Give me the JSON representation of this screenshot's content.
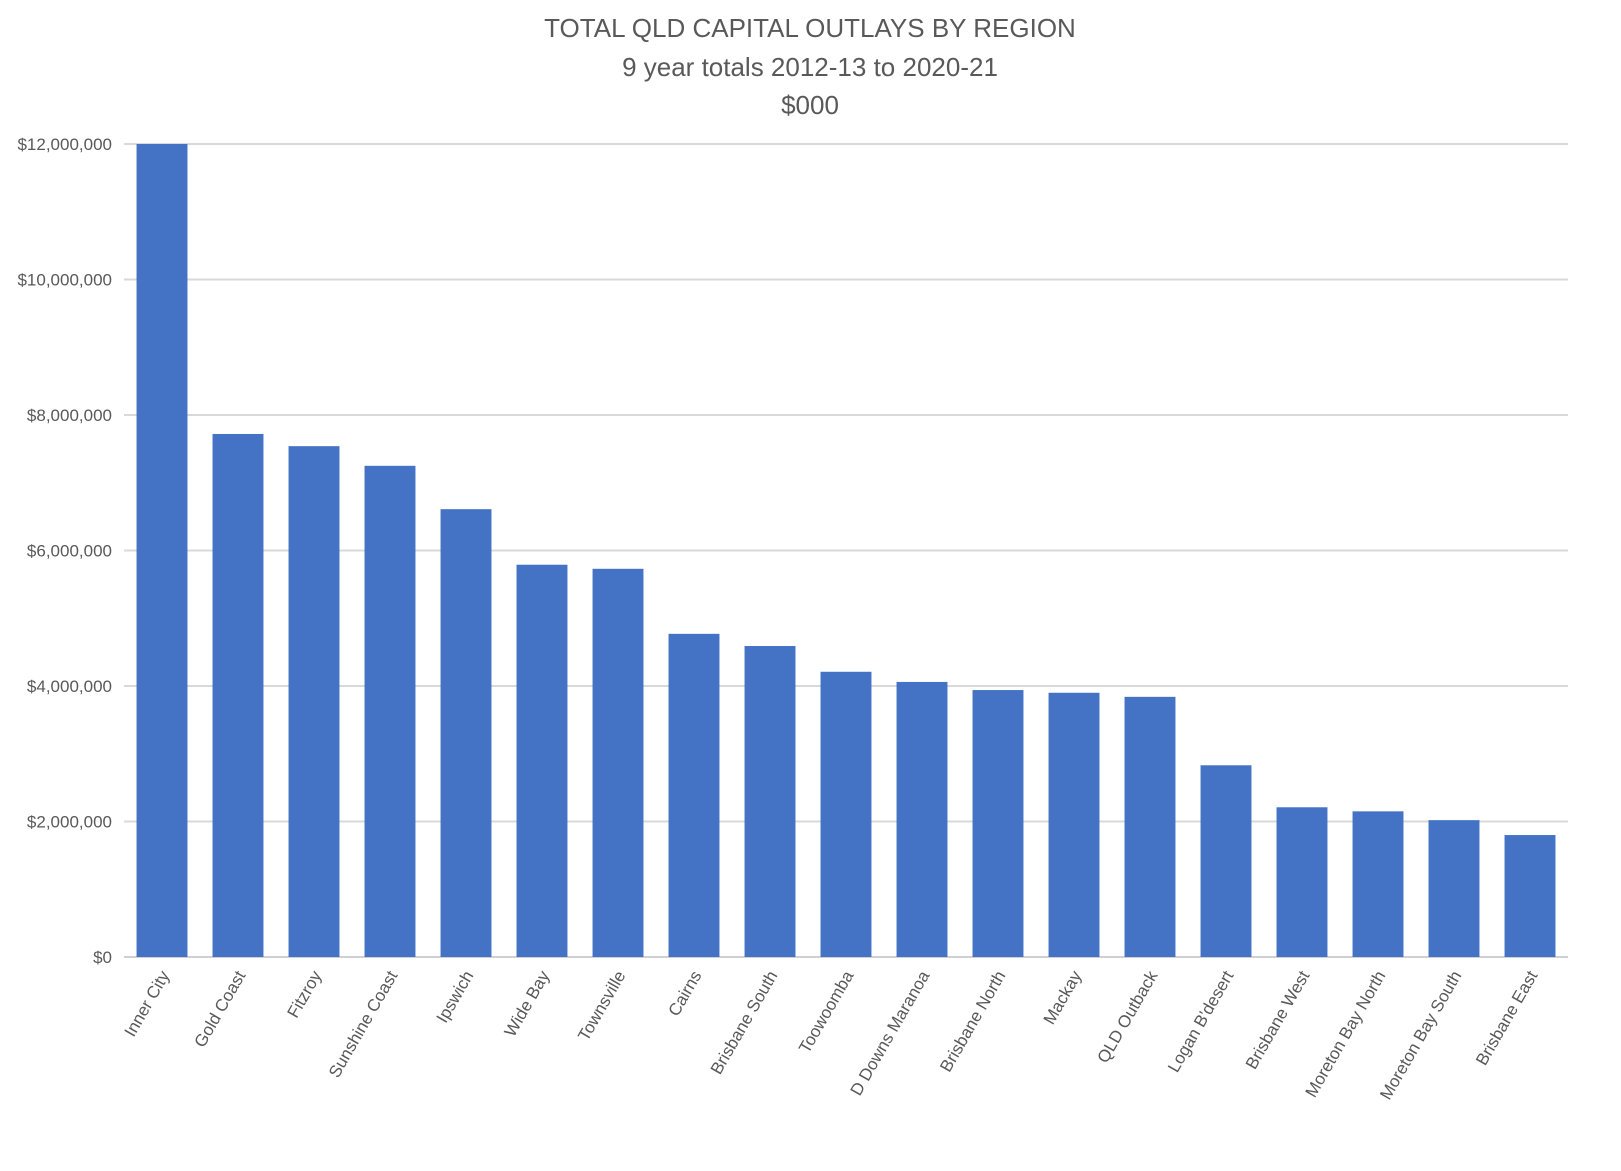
{
  "chart_data": {
    "type": "bar",
    "title": "TOTAL QLD CAPITAL OUTLAYS BY REGION",
    "subtitle": "9 year totals 2012-13 to 2020-21",
    "units": "$000",
    "xlabel": "",
    "ylabel": "",
    "ylim": [
      0,
      12000000
    ],
    "yticks": [
      0,
      2000000,
      4000000,
      6000000,
      8000000,
      10000000,
      12000000
    ],
    "ytick_labels": [
      "$0",
      "$2,000,000",
      "$4,000,000",
      "$6,000,000",
      "$8,000,000",
      "$10,000,000",
      "$12,000,000"
    ],
    "grid": true,
    "bar_color": "#4472C4",
    "categories": [
      "Inner City",
      "Gold Coast",
      "Fitzroy",
      "Sunshine Coast",
      "Ipswich",
      "Wide Bay",
      "Townsville",
      "Cairns",
      "Brisbane South",
      "Toowoomba",
      "D Downs Maranoa",
      "Brisbane North",
      "Mackay",
      "QLD Outback",
      "Logan B'desert",
      "Brisbane West",
      "Moreton Bay North",
      "Moreton Bay South",
      "Brisbane East"
    ],
    "values": [
      12000000,
      7720000,
      7540000,
      7250000,
      6610000,
      5790000,
      5730000,
      4770000,
      4590000,
      4210000,
      4060000,
      3940000,
      3900000,
      3840000,
      2830000,
      2210000,
      2150000,
      2020000,
      1800000
    ]
  }
}
